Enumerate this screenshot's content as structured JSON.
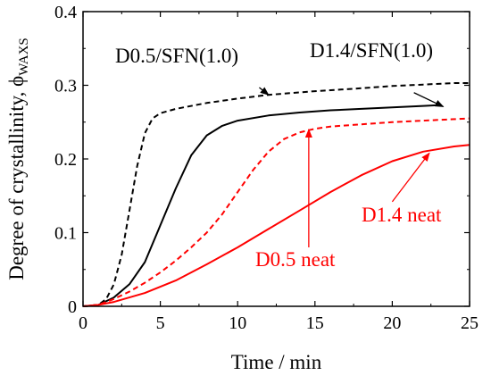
{
  "chart_data": {
    "type": "line",
    "xlabel": "Time / min",
    "ylabel": "Degree of crystallinity, ϕ",
    "ylabel_subscript": "WAXS",
    "xlim": [
      0,
      25
    ],
    "ylim": [
      0,
      0.4
    ],
    "xticks": [
      "0",
      "5",
      "10",
      "15",
      "20",
      "25"
    ],
    "yticks": [
      "0",
      "0.1",
      "0.2",
      "0.3",
      "0.4"
    ],
    "grid": false,
    "legend": "none",
    "series": [
      {
        "name": "D0.5/SFN(1.0)",
        "color": "#000000",
        "dash": "dashed",
        "x": [
          0,
          1,
          1.5,
          2,
          2.5,
          3,
          3.5,
          4,
          4.5,
          5,
          6,
          8,
          10,
          12,
          15,
          18,
          20,
          22,
          24,
          25
        ],
        "y": [
          0,
          0.002,
          0.01,
          0.03,
          0.07,
          0.13,
          0.19,
          0.235,
          0.255,
          0.262,
          0.268,
          0.276,
          0.282,
          0.287,
          0.292,
          0.296,
          0.299,
          0.301,
          0.303,
          0.303
        ]
      },
      {
        "name": "D1.4/SFN(1.0)",
        "color": "#000000",
        "dash": "solid",
        "x": [
          0,
          1,
          2,
          3,
          4,
          5,
          6,
          7,
          8,
          9,
          10,
          12,
          14,
          16,
          18,
          20,
          22,
          23
        ],
        "y": [
          0,
          0.002,
          0.012,
          0.03,
          0.06,
          0.11,
          0.16,
          0.205,
          0.232,
          0.245,
          0.252,
          0.259,
          0.263,
          0.266,
          0.268,
          0.27,
          0.272,
          0.273
        ]
      },
      {
        "name": "D0.5 neat",
        "color": "#ff0000",
        "dash": "dashed",
        "x": [
          0,
          1,
          2,
          3,
          4,
          5,
          6,
          7,
          8,
          9,
          10,
          11,
          12,
          13,
          14,
          15,
          16,
          18,
          20,
          22,
          25
        ],
        "y": [
          0,
          0.002,
          0.01,
          0.02,
          0.032,
          0.046,
          0.062,
          0.08,
          0.1,
          0.125,
          0.155,
          0.185,
          0.21,
          0.227,
          0.236,
          0.241,
          0.244,
          0.247,
          0.25,
          0.252,
          0.255
        ]
      },
      {
        "name": "D1.4 neat",
        "color": "#ff0000",
        "dash": "solid",
        "x": [
          0,
          1,
          2,
          4,
          6,
          8,
          10,
          12,
          14,
          16,
          18,
          20,
          22,
          24,
          25
        ],
        "y": [
          0,
          0.002,
          0.006,
          0.018,
          0.035,
          0.057,
          0.08,
          0.105,
          0.13,
          0.155,
          0.178,
          0.197,
          0.21,
          0.217,
          0.219
        ]
      }
    ],
    "annotations": [
      {
        "text": "D0.5/SFN(1.0)",
        "color": "#000000",
        "target": [
          12.0,
          0.287
        ],
        "from": [
          11.4,
          0.297
        ]
      },
      {
        "text": "D1.4/SFN(1.0)",
        "color": "#000000",
        "target": [
          23.3,
          0.271
        ],
        "from": [
          21.4,
          0.29
        ]
      },
      {
        "text": "D0.5 neat",
        "color": "#ff0000",
        "target": [
          14.6,
          0.24
        ],
        "from": [
          14.6,
          0.08
        ]
      },
      {
        "text": "D1.4 neat",
        "color": "#ff0000",
        "target": [
          22.4,
          0.208
        ],
        "from": [
          20.0,
          0.142
        ]
      }
    ]
  }
}
